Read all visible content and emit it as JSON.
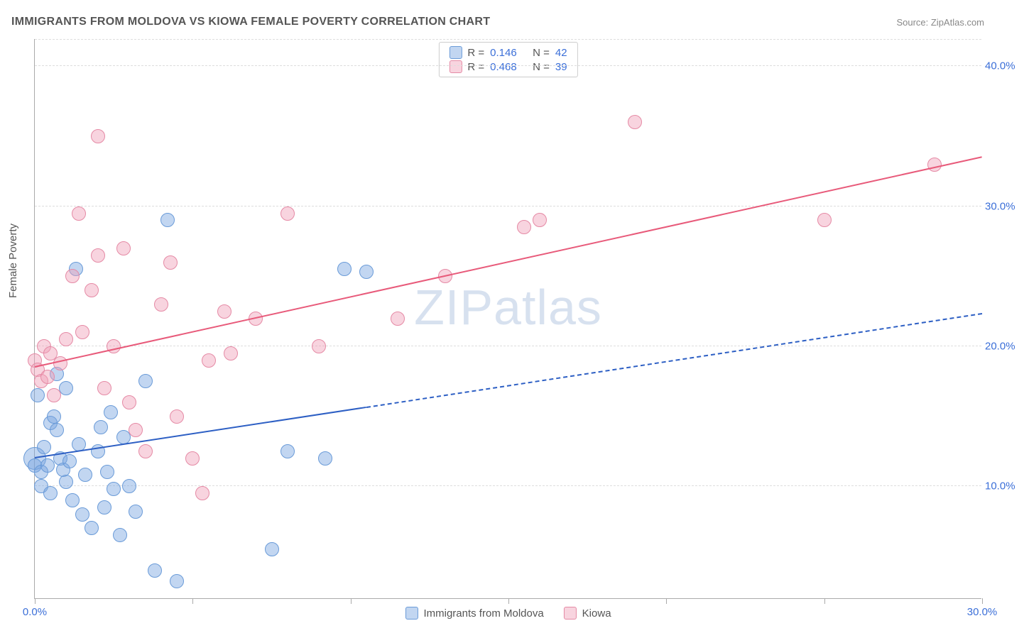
{
  "title": "IMMIGRANTS FROM MOLDOVA VS KIOWA FEMALE POVERTY CORRELATION CHART",
  "source": "Source: ZipAtlas.com",
  "ylabel": "Female Poverty",
  "watermark_zip": "ZIP",
  "watermark_atlas": "atlas",
  "chart": {
    "type": "scatter",
    "xlim": [
      0,
      30
    ],
    "ylim": [
      2,
      42
    ],
    "x_ticks": [
      0,
      5,
      10,
      15,
      20,
      25,
      30
    ],
    "x_tick_labels": [
      "0.0%",
      "",
      "",
      "",
      "",
      "",
      "30.0%"
    ],
    "y_ticks": [
      10,
      20,
      30,
      40
    ],
    "y_tick_labels": [
      "10.0%",
      "20.0%",
      "30.0%",
      "40.0%"
    ],
    "background_color": "#ffffff",
    "grid_color": "#dddddd",
    "axis_color": "#aaaaaa",
    "tick_label_color": "#3b6fd8",
    "label_fontsize": 15,
    "title_fontsize": 16,
    "marker_radius": 10,
    "marker_stroke_width": 1.5,
    "trend_line_width": 2.5
  },
  "series": [
    {
      "name": "Immigrants from Moldova",
      "fill_color": "rgba(120,165,225,0.45)",
      "stroke_color": "#6a9bd8",
      "line_color": "#2d5fc4",
      "R": "0.146",
      "N": "42",
      "points": [
        [
          0.0,
          12.0
        ],
        [
          0.0,
          11.5
        ],
        [
          0.1,
          16.5
        ],
        [
          0.2,
          11.0
        ],
        [
          0.2,
          10.0
        ],
        [
          0.3,
          12.8
        ],
        [
          0.4,
          11.5
        ],
        [
          0.5,
          14.5
        ],
        [
          0.5,
          9.5
        ],
        [
          0.6,
          15.0
        ],
        [
          0.7,
          14.0
        ],
        [
          0.7,
          18.0
        ],
        [
          0.8,
          12.0
        ],
        [
          0.9,
          11.2
        ],
        [
          1.0,
          10.3
        ],
        [
          1.0,
          17.0
        ],
        [
          1.1,
          11.8
        ],
        [
          1.2,
          9.0
        ],
        [
          1.3,
          25.5
        ],
        [
          1.4,
          13.0
        ],
        [
          1.5,
          8.0
        ],
        [
          1.6,
          10.8
        ],
        [
          1.8,
          7.0
        ],
        [
          2.0,
          12.5
        ],
        [
          2.1,
          14.2
        ],
        [
          2.2,
          8.5
        ],
        [
          2.3,
          11.0
        ],
        [
          2.4,
          15.3
        ],
        [
          2.5,
          9.8
        ],
        [
          2.7,
          6.5
        ],
        [
          2.8,
          13.5
        ],
        [
          3.0,
          10.0
        ],
        [
          3.2,
          8.2
        ],
        [
          3.5,
          17.5
        ],
        [
          3.8,
          4.0
        ],
        [
          4.2,
          29.0
        ],
        [
          4.5,
          3.2
        ],
        [
          7.5,
          5.5
        ],
        [
          8.0,
          12.5
        ],
        [
          9.2,
          12.0
        ],
        [
          9.8,
          25.5
        ],
        [
          10.5,
          25.3
        ]
      ],
      "trend": {
        "x0": 0,
        "y0": 12.0,
        "x1": 30,
        "y1": 22.3,
        "solid_until_x": 10.5
      }
    },
    {
      "name": "Kiowa",
      "fill_color": "rgba(240,160,185,0.45)",
      "stroke_color": "#e58aa5",
      "line_color": "#e85a7a",
      "R": "0.468",
      "N": "39",
      "points": [
        [
          0.0,
          19.0
        ],
        [
          0.1,
          18.3
        ],
        [
          0.2,
          17.5
        ],
        [
          0.3,
          20.0
        ],
        [
          0.4,
          17.8
        ],
        [
          0.5,
          19.5
        ],
        [
          0.6,
          16.5
        ],
        [
          0.8,
          18.8
        ],
        [
          1.0,
          20.5
        ],
        [
          1.2,
          25.0
        ],
        [
          1.4,
          29.5
        ],
        [
          1.5,
          21.0
        ],
        [
          1.8,
          24.0
        ],
        [
          2.0,
          26.5
        ],
        [
          2.0,
          35.0
        ],
        [
          2.2,
          17.0
        ],
        [
          2.5,
          20.0
        ],
        [
          2.8,
          27.0
        ],
        [
          3.0,
          16.0
        ],
        [
          3.2,
          14.0
        ],
        [
          3.5,
          12.5
        ],
        [
          4.0,
          23.0
        ],
        [
          4.3,
          26.0
        ],
        [
          4.5,
          15.0
        ],
        [
          5.0,
          12.0
        ],
        [
          5.3,
          9.5
        ],
        [
          5.5,
          19.0
        ],
        [
          6.0,
          22.5
        ],
        [
          6.2,
          19.5
        ],
        [
          7.0,
          22.0
        ],
        [
          8.0,
          29.5
        ],
        [
          9.0,
          20.0
        ],
        [
          11.5,
          22.0
        ],
        [
          13.0,
          25.0
        ],
        [
          15.5,
          28.5
        ],
        [
          16.0,
          29.0
        ],
        [
          19.0,
          36.0
        ],
        [
          25.0,
          29.0
        ],
        [
          28.5,
          33.0
        ]
      ],
      "trend": {
        "x0": 0,
        "y0": 18.5,
        "x1": 30,
        "y1": 33.5,
        "solid_until_x": 30
      }
    }
  ],
  "legend_top": {
    "r_label": "R =",
    "n_label": "N ="
  },
  "bottom_legend": {
    "items": [
      "Immigrants from Moldova",
      "Kiowa"
    ]
  }
}
